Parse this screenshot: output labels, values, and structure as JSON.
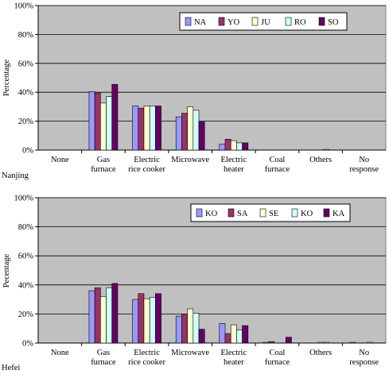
{
  "chart_data": [
    {
      "type": "bar",
      "caption": "Nanjing",
      "ylabel": "Percentage",
      "ylim": [
        0,
        100
      ],
      "yticks": [
        "0%",
        "20%",
        "40%",
        "60%",
        "80%",
        "100%"
      ],
      "grid": true,
      "legend_position": "top-right",
      "categories": [
        [
          "None"
        ],
        [
          "Gas",
          "furnace"
        ],
        [
          "Electric",
          "rice cooker"
        ],
        [
          "Microwave"
        ],
        [
          "Electric",
          "heater"
        ],
        [
          "Coal",
          "furnace"
        ],
        [
          "Others"
        ],
        [
          "No",
          "response"
        ]
      ],
      "series": [
        {
          "name": "NA",
          "color": "#9999ff",
          "values": [
            0,
            40.5,
            30.5,
            23,
            4,
            0,
            0,
            0
          ]
        },
        {
          "name": "YO",
          "color": "#993366",
          "values": [
            0,
            39.5,
            29,
            25.5,
            7.5,
            0,
            0,
            0
          ]
        },
        {
          "name": "JU",
          "color": "#ffffcc",
          "values": [
            0,
            32.5,
            30.5,
            30,
            6.5,
            0,
            0,
            0
          ]
        },
        {
          "name": "RO",
          "color": "#ccffff",
          "values": [
            0,
            37,
            30.5,
            27.5,
            5,
            0,
            0.5,
            0
          ]
        },
        {
          "name": "SO",
          "color": "#660066",
          "values": [
            0,
            45.5,
            30.5,
            19.5,
            5,
            0,
            0,
            0
          ]
        }
      ]
    },
    {
      "type": "bar",
      "caption": "Hefei",
      "ylabel": "Pecentage",
      "ylim": [
        0,
        100
      ],
      "yticks": [
        "0%",
        "20%",
        "40%",
        "60%",
        "80%",
        "100%"
      ],
      "grid": true,
      "legend_position": "top-right",
      "categories": [
        [
          "None"
        ],
        [
          "Gas",
          "furnace"
        ],
        [
          "Electric",
          "rice cooker"
        ],
        [
          "Microwave"
        ],
        [
          "Electric",
          "heater"
        ],
        [
          "Coal",
          "furnace"
        ],
        [
          "Others"
        ],
        [
          "No",
          "response"
        ]
      ],
      "series": [
        {
          "name": "KO",
          "color": "#9999ff",
          "values": [
            0,
            36,
            30,
            18.5,
            13.5,
            0.5,
            0,
            0.5
          ]
        },
        {
          "name": "SA",
          "color": "#993366",
          "values": [
            0,
            38,
            34,
            20,
            6.5,
            1,
            0,
            0
          ]
        },
        {
          "name": "SE",
          "color": "#ffffcc",
          "values": [
            0,
            32,
            30.5,
            23.5,
            12.5,
            0,
            0.5,
            0
          ]
        },
        {
          "name": "KO",
          "color": "#ccffff",
          "values": [
            0,
            38,
            31.5,
            20.5,
            9,
            0,
            0.5,
            0.5
          ]
        },
        {
          "name": "KA",
          "color": "#660066",
          "values": [
            0,
            41,
            34,
            9.5,
            12,
            4,
            0,
            0
          ]
        }
      ]
    }
  ]
}
